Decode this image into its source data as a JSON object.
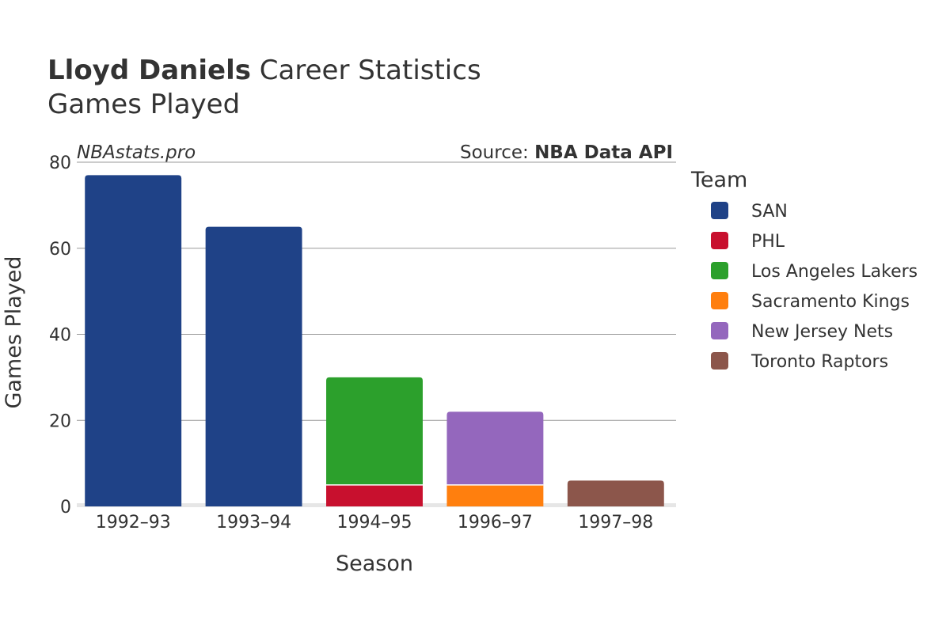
{
  "title": {
    "player": "Lloyd Daniels",
    "rest": " Career Statistics",
    "subtitle": "Games Played"
  },
  "watermark": "NBAstats.pro",
  "source": {
    "prefix": "Source: ",
    "name": "NBA Data API"
  },
  "chart_data": {
    "type": "bar",
    "stacked": true,
    "title": "Lloyd Daniels Career Statistics — Games Played",
    "xlabel": "Season",
    "ylabel": "Games Played",
    "ylim": [
      0,
      80
    ],
    "yticks": [
      0,
      20,
      40,
      60,
      80
    ],
    "categories": [
      "1992–93",
      "1993–94",
      "1994–95",
      "1996–97",
      "1997–98"
    ],
    "legend_title": "Team",
    "legend_position": "right",
    "series": [
      {
        "name": "SAN",
        "color": "#1f4287",
        "values": [
          77,
          65,
          0,
          0,
          0
        ]
      },
      {
        "name": "PHL",
        "color": "#c8102e",
        "values": [
          0,
          0,
          5,
          0,
          0
        ]
      },
      {
        "name": "Los Angeles Lakers",
        "color": "#2ca02c",
        "values": [
          0,
          0,
          25,
          0,
          0
        ]
      },
      {
        "name": "Sacramento Kings",
        "color": "#ff7f0e",
        "values": [
          0,
          0,
          0,
          5,
          0
        ]
      },
      {
        "name": "New Jersey Nets",
        "color": "#9467bd",
        "values": [
          0,
          0,
          0,
          17,
          0
        ]
      },
      {
        "name": "Toronto Raptors",
        "color": "#8c564b",
        "values": [
          0,
          0,
          0,
          0,
          6
        ]
      }
    ]
  }
}
